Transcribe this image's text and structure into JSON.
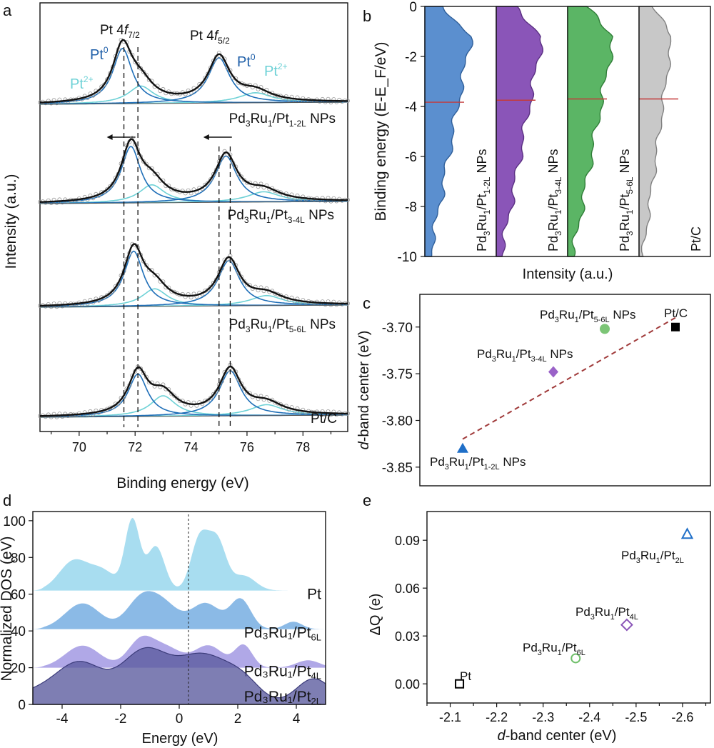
{
  "panel_labels": [
    "a",
    "b",
    "c",
    "d",
    "e"
  ],
  "chart_data": [
    {
      "panel": "a",
      "type": "line",
      "xlabel": "Binding energy (eV)",
      "ylabel": "Intensity (a.u.)",
      "xlim": [
        68.6,
        79.6
      ],
      "xticks": [
        "70",
        "72",
        "74",
        "76",
        "78"
      ],
      "peak_labels": {
        "f72": {
          "main": "Pt 4",
          "sym": "f",
          "sub": "7/2"
        },
        "f52": {
          "main": "Pt 4",
          "sym": "f",
          "sub": "5/2"
        },
        "pt0": {
          "main": "Pt",
          "sup": "0"
        },
        "pt2": {
          "main": "Pt",
          "sup": "2+"
        }
      },
      "series": [
        {
          "name": "Pd3Ru1/Pt1-2L NPs",
          "label": {
            "a": "Pd",
            "s1": "3",
            "b": "Ru",
            "s2": "1",
            "c": "/Pt",
            "s3": "1-2L",
            "d": " NPs"
          },
          "pt0_peaks": [
            71.55,
            75.0
          ],
          "pt2_peaks": [
            72.2,
            76.3
          ],
          "shift_arrow": true
        },
        {
          "name": "Pd3Ru1/Pt3-4L NPs",
          "label": {
            "a": "Pd",
            "s1": "3",
            "b": "Ru",
            "s2": "1",
            "c": "/Pt",
            "s3": "3-4L",
            "d": " NPs"
          },
          "pt0_peaks": [
            71.85,
            75.25
          ],
          "pt2_peaks": [
            72.6,
            76.6
          ],
          "shift_arrow": false
        },
        {
          "name": "Pd3Ru1/Pt5-6L NPs",
          "label": {
            "a": "Pd",
            "s1": "3",
            "b": "Ru",
            "s2": "1",
            "c": "/Pt",
            "s3": "5-6L",
            "d": " NPs"
          },
          "pt0_peaks": [
            71.95,
            75.35
          ],
          "pt2_peaks": [
            72.7,
            76.7
          ],
          "shift_arrow": false
        },
        {
          "name": "Pt/C",
          "label": {
            "a": "Pt/C",
            "s1": "",
            "b": "",
            "s2": "",
            "c": "",
            "s3": "",
            "d": ""
          },
          "pt0_peaks": [
            72.1,
            75.4
          ],
          "pt2_peaks": [
            73.0,
            76.7
          ],
          "shift_arrow": false
        }
      ],
      "reference_lines": [
        71.6,
        72.1,
        75.0,
        75.4
      ]
    },
    {
      "panel": "b",
      "type": "area",
      "ylabel": "Binding energy (E-E_F/eV)",
      "xlabel": "Intensity (a.u.)",
      "ylim": [
        -10,
        0
      ],
      "yticks": [
        "0",
        "-2",
        "-4",
        "-6",
        "-8",
        "-10"
      ],
      "series": [
        {
          "name": "Pd3Ru1/Pt1-2L NPs",
          "label": {
            "a": "Pd",
            "s1": "3",
            "b": "Ru",
            "s2": "1",
            "c": "/Pt",
            "s3": "1-2L",
            "d": " NPs"
          },
          "color": "#5b8fcf",
          "edge": "#2f5f9a",
          "d_band_center": -3.83
        },
        {
          "name": "Pd3Ru1/Pt3-4L NPs",
          "label": {
            "a": "Pd",
            "s1": "3",
            "b": "Ru",
            "s2": "1",
            "c": "/Pt",
            "s3": "3-4L",
            "d": " NPs"
          },
          "color": "#8a55b8",
          "edge": "#5a2f82",
          "d_band_center": -3.75
        },
        {
          "name": "Pd3Ru1/Pt5-6L NPs",
          "label": {
            "a": "Pd",
            "s1": "3",
            "b": "Ru",
            "s2": "1",
            "c": "/Pt",
            "s3": "5-6L",
            "d": " NPs"
          },
          "color": "#5bb565",
          "edge": "#2f7d37",
          "d_band_center": -3.7
        },
        {
          "name": "Pt/C",
          "label": {
            "a": "Pt/C",
            "s1": "",
            "b": "",
            "s2": "",
            "c": "",
            "s3": "",
            "d": ""
          },
          "color": "#c8c8c8",
          "edge": "#808080",
          "d_band_center": -3.7
        }
      ]
    },
    {
      "panel": "c",
      "type": "scatter",
      "ylabel": "d-band center (eV)",
      "ylim": [
        -3.87,
        -3.665
      ],
      "yticks": [
        "-3.70",
        "-3.75",
        "-3.80",
        "-3.85"
      ],
      "points": [
        {
          "name": "Pd3Ru1/Pt1-2L NPs",
          "label": {
            "a": "Pd",
            "s1": "3",
            "b": "Ru",
            "s2": "1",
            "c": "/Pt",
            "s3": "1-2L",
            "d": " NPs"
          },
          "x": 1,
          "y": -3.83,
          "marker": "triangle",
          "color": "#1f6fc8"
        },
        {
          "name": "Pd3Ru1/Pt3-4L NPs",
          "label": {
            "a": "Pd",
            "s1": "3",
            "b": "Ru",
            "s2": "1",
            "c": "/Pt",
            "s3": "3-4L",
            "d": " NPs"
          },
          "x": 2,
          "y": -3.748,
          "marker": "diamond",
          "color": "#9a62c8"
        },
        {
          "name": "Pd3Ru1/Pt5-6L NPs",
          "label": {
            "a": "Pd",
            "s1": "3",
            "b": "Ru",
            "s2": "1",
            "c": "/Pt",
            "s3": "5-6L",
            "d": " NPs"
          },
          "x": 3,
          "y": -3.702,
          "marker": "circle",
          "color": "#7cc576"
        },
        {
          "name": "Pt/C",
          "label": {
            "a": "Pt/C",
            "s1": "",
            "b": "",
            "s2": "",
            "c": "",
            "s3": "",
            "d": ""
          },
          "x": 4,
          "y": -3.7,
          "marker": "square",
          "color": "#000000"
        }
      ],
      "trend_line": {
        "from": [
          1,
          -3.82
        ],
        "to": [
          4,
          -3.69
        ],
        "color": "#a03a3a"
      }
    },
    {
      "panel": "d",
      "type": "area",
      "xlabel": "Energy (eV)",
      "ylabel": "Normalized DOS (eV)",
      "xlim": [
        -5,
        5
      ],
      "ylim": [
        0,
        105
      ],
      "xticks": [
        "-4",
        "-2",
        "0",
        "2",
        "4"
      ],
      "yticks": [
        "0",
        "20",
        "40",
        "60",
        "80",
        "100"
      ],
      "series": [
        {
          "name": "Pt",
          "label": {
            "a": "Pt",
            "sub": ""
          },
          "offset": 62,
          "color": "#8fd3ec"
        },
        {
          "name": "Pd3Ru1/Pt6L",
          "label": {
            "a": "Pd₃Ru₁/Pt",
            "sub": "6L"
          },
          "offset": 41,
          "color": "#6aa6df"
        },
        {
          "name": "Pd3Ru1/Pt4L",
          "label": {
            "a": "Pd₃Ru₁/Pt",
            "sub": "4L"
          },
          "offset": 20,
          "color": "#9a8fe0"
        },
        {
          "name": "Pd3Ru1/Pt2L",
          "label": {
            "a": "Pd₃Ru₁/Pt",
            "sub": "2L"
          },
          "offset": 0,
          "color": "#5a5a9e"
        }
      ]
    },
    {
      "panel": "e",
      "type": "scatter",
      "xlabel": "d-band center (eV)",
      "ylabel": "ΔQ (e)",
      "xlim": [
        -2.05,
        -2.66
      ],
      "ylim": [
        -0.012,
        0.108
      ],
      "xticks": [
        "-2.1",
        "-2.2",
        "-2.3",
        "-2.4",
        "-2.5",
        "-2.6"
      ],
      "yticks": [
        "0.00",
        "0.03",
        "0.06",
        "0.09"
      ],
      "points": [
        {
          "name": "Pt",
          "label": {
            "a": "Pt",
            "s1": "",
            "b": "",
            "s2": "",
            "c": "",
            "s3": ""
          },
          "x": -2.12,
          "y": 0.0,
          "marker": "square",
          "color": "#000000"
        },
        {
          "name": "Pd3Ru1/Pt6L",
          "label": {
            "a": "Pd",
            "s1": "3",
            "b": "Ru",
            "s2": "1",
            "c": "/Pt",
            "s3": "6L"
          },
          "x": -2.37,
          "y": 0.016,
          "marker": "circle",
          "color": "#6fbf6a"
        },
        {
          "name": "Pd3Ru1/Pt4L",
          "label": {
            "a": "Pd",
            "s1": "3",
            "b": "Ru",
            "s2": "1",
            "c": "/Pt",
            "s3": "4L"
          },
          "x": -2.48,
          "y": 0.037,
          "marker": "diamond",
          "color": "#8a55b8"
        },
        {
          "name": "Pd3Ru1/Pt2L",
          "label": {
            "a": "Pd",
            "s1": "3",
            "b": "Ru",
            "s2": "1",
            "c": "/Pt",
            "s3": "2L"
          },
          "x": -2.61,
          "y": 0.094,
          "marker": "triangle",
          "color": "#1f6fc8"
        }
      ]
    }
  ]
}
